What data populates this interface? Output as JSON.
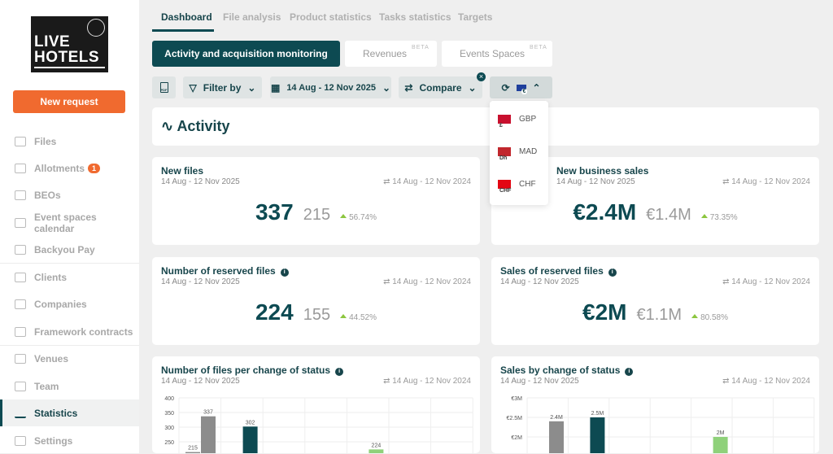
{
  "sidebar": {
    "logo": "LIVE HOTELS",
    "new_request": "New request",
    "items": [
      {
        "label": "Files"
      },
      {
        "label": "Allotments",
        "badge": "1"
      },
      {
        "label": "BEOs"
      },
      {
        "label": "Event spaces calendar"
      },
      {
        "label": "Backyou Pay"
      },
      {
        "label": "Clients"
      },
      {
        "label": "Companies"
      },
      {
        "label": "Framework contracts"
      },
      {
        "label": "Venues"
      },
      {
        "label": "Team"
      },
      {
        "label": "Statistics",
        "active": true
      },
      {
        "label": "Settings"
      }
    ]
  },
  "tabs": [
    "Dashboard",
    "File analysis",
    "Product statistics",
    "Tasks statistics",
    "Targets"
  ],
  "subtabs": {
    "activity": "Activity and acquisition monitoring",
    "revenues": "Revenues",
    "events": "Events Spaces",
    "beta": "BETA"
  },
  "toolbar": {
    "pdf": "PDF",
    "filter": "Filter by",
    "date": "14 Aug - 12 Nov 2025",
    "compare": "Compare",
    "clear": "×",
    "currency_symbol": "€"
  },
  "currency_menu": [
    {
      "code": "GBP",
      "symbol": "£",
      "color": "#c8102e"
    },
    {
      "code": "MAD",
      "symbol": "Dh",
      "color": "#c1272d"
    },
    {
      "code": "CHF",
      "symbol": "CHF",
      "color": "#e30613"
    }
  ],
  "section": {
    "title": "Activity"
  },
  "cards": [
    {
      "title": "New files",
      "date": "14 Aug - 12 Nov 2025",
      "compare_date": "14 Aug - 12 Nov 2024",
      "value": "337",
      "previous": "215",
      "change": "56.74%"
    },
    {
      "title": "New business sales",
      "date": "14 Aug - 12 Nov 2025",
      "compare_date": "14 Aug - 12 Nov 2024",
      "value": "€2.4M",
      "previous": "€1.4M",
      "change": "73.35%"
    },
    {
      "title": "Number of reserved files",
      "date": "14 Aug - 12 Nov 2025",
      "compare_date": "14 Aug - 12 Nov 2024",
      "value": "224",
      "previous": "155",
      "change": "44.52%"
    },
    {
      "title": "Sales of reserved files",
      "date": "14 Aug - 12 Nov 2025",
      "compare_date": "14 Aug - 12 Nov 2024",
      "value": "€2M",
      "previous": "€1.1M",
      "change": "80.58%"
    }
  ],
  "chart_data": [
    {
      "type": "bar",
      "title": "Number of files per change of status",
      "date": "14 Aug - 12 Nov 2025",
      "compare_date": "14 Aug - 12 Nov 2024",
      "yticks": [
        "400",
        "350",
        "300",
        "250"
      ],
      "ylim": [
        0,
        400
      ],
      "bars": [
        {
          "value": 215,
          "label": "215",
          "color": "#8c8c8c",
          "slot": 0,
          "offset": -1
        },
        {
          "value": 337,
          "label": "337",
          "color": "#8c8c8c",
          "slot": 0,
          "offset": 0
        },
        {
          "value": 302,
          "label": "302",
          "color": "#0d4a52",
          "slot": 1,
          "offset": 0
        },
        {
          "value": 224,
          "label": "224",
          "color": "#8fd17a",
          "slot": 4,
          "offset": 0
        }
      ]
    },
    {
      "type": "bar",
      "title": "Sales by change of status",
      "date": "14 Aug - 12 Nov 2025",
      "compare_date": "14 Aug - 12 Nov 2024",
      "yticks": [
        "€3M",
        "€2.5M",
        "€2M"
      ],
      "ylim": [
        0,
        3
      ],
      "bars": [
        {
          "value": 2.4,
          "label": "2.4M",
          "color": "#8c8c8c",
          "slot": 0,
          "offset": 0
        },
        {
          "value": 2.5,
          "label": "2.5M",
          "color": "#0d4a52",
          "slot": 1,
          "offset": 0
        },
        {
          "value": 2.0,
          "label": "2M",
          "color": "#8fd17a",
          "slot": 4,
          "offset": 0
        }
      ]
    }
  ]
}
